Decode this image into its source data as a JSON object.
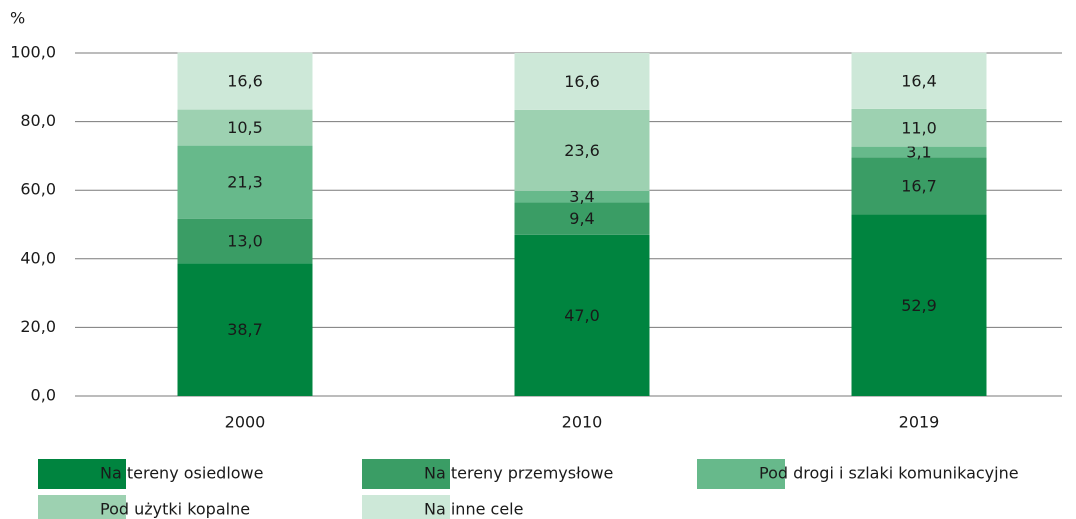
{
  "chart_data": {
    "type": "stacked_bar",
    "y_axis_label": "%",
    "categories": [
      "2000",
      "2010",
      "2019"
    ],
    "ylim": [
      0,
      100
    ],
    "yticks": [
      {
        "value": 0,
        "label": "0,0"
      },
      {
        "value": 20,
        "label": "20,0"
      },
      {
        "value": 40,
        "label": "40,0"
      },
      {
        "value": 60,
        "label": "60,0"
      },
      {
        "value": 80,
        "label": "80,0"
      },
      {
        "value": 100,
        "label": "100,0"
      }
    ],
    "grid": true,
    "series": [
      {
        "name": "Na tereny osiedlowe",
        "color": "#00843f",
        "values": [
          38.7,
          47.0,
          52.9
        ],
        "value_labels": [
          "38,7",
          "47,0",
          "52,9"
        ]
      },
      {
        "name": "Na tereny przemysłowe",
        "color": "#3a9d65",
        "values": [
          13.0,
          9.4,
          16.7
        ],
        "value_labels": [
          "13,0",
          "9,4",
          "16,7"
        ]
      },
      {
        "name": "Pod drogi i szlaki komunikacyjne",
        "color": "#67b98b",
        "values": [
          21.3,
          3.4,
          3.1
        ],
        "value_labels": [
          "21,3",
          "3,4",
          "3,1"
        ]
      },
      {
        "name": "Pod użytki kopalne",
        "color": "#9dd1b1",
        "values": [
          10.5,
          23.6,
          11.0
        ],
        "value_labels": [
          "10,5",
          "23,6",
          "11,0"
        ]
      },
      {
        "name": "Na inne cele",
        "color": "#cde8d8",
        "values": [
          16.6,
          16.6,
          16.4
        ],
        "value_labels": [
          "16,6",
          "16,6",
          "16,4"
        ]
      }
    ]
  }
}
